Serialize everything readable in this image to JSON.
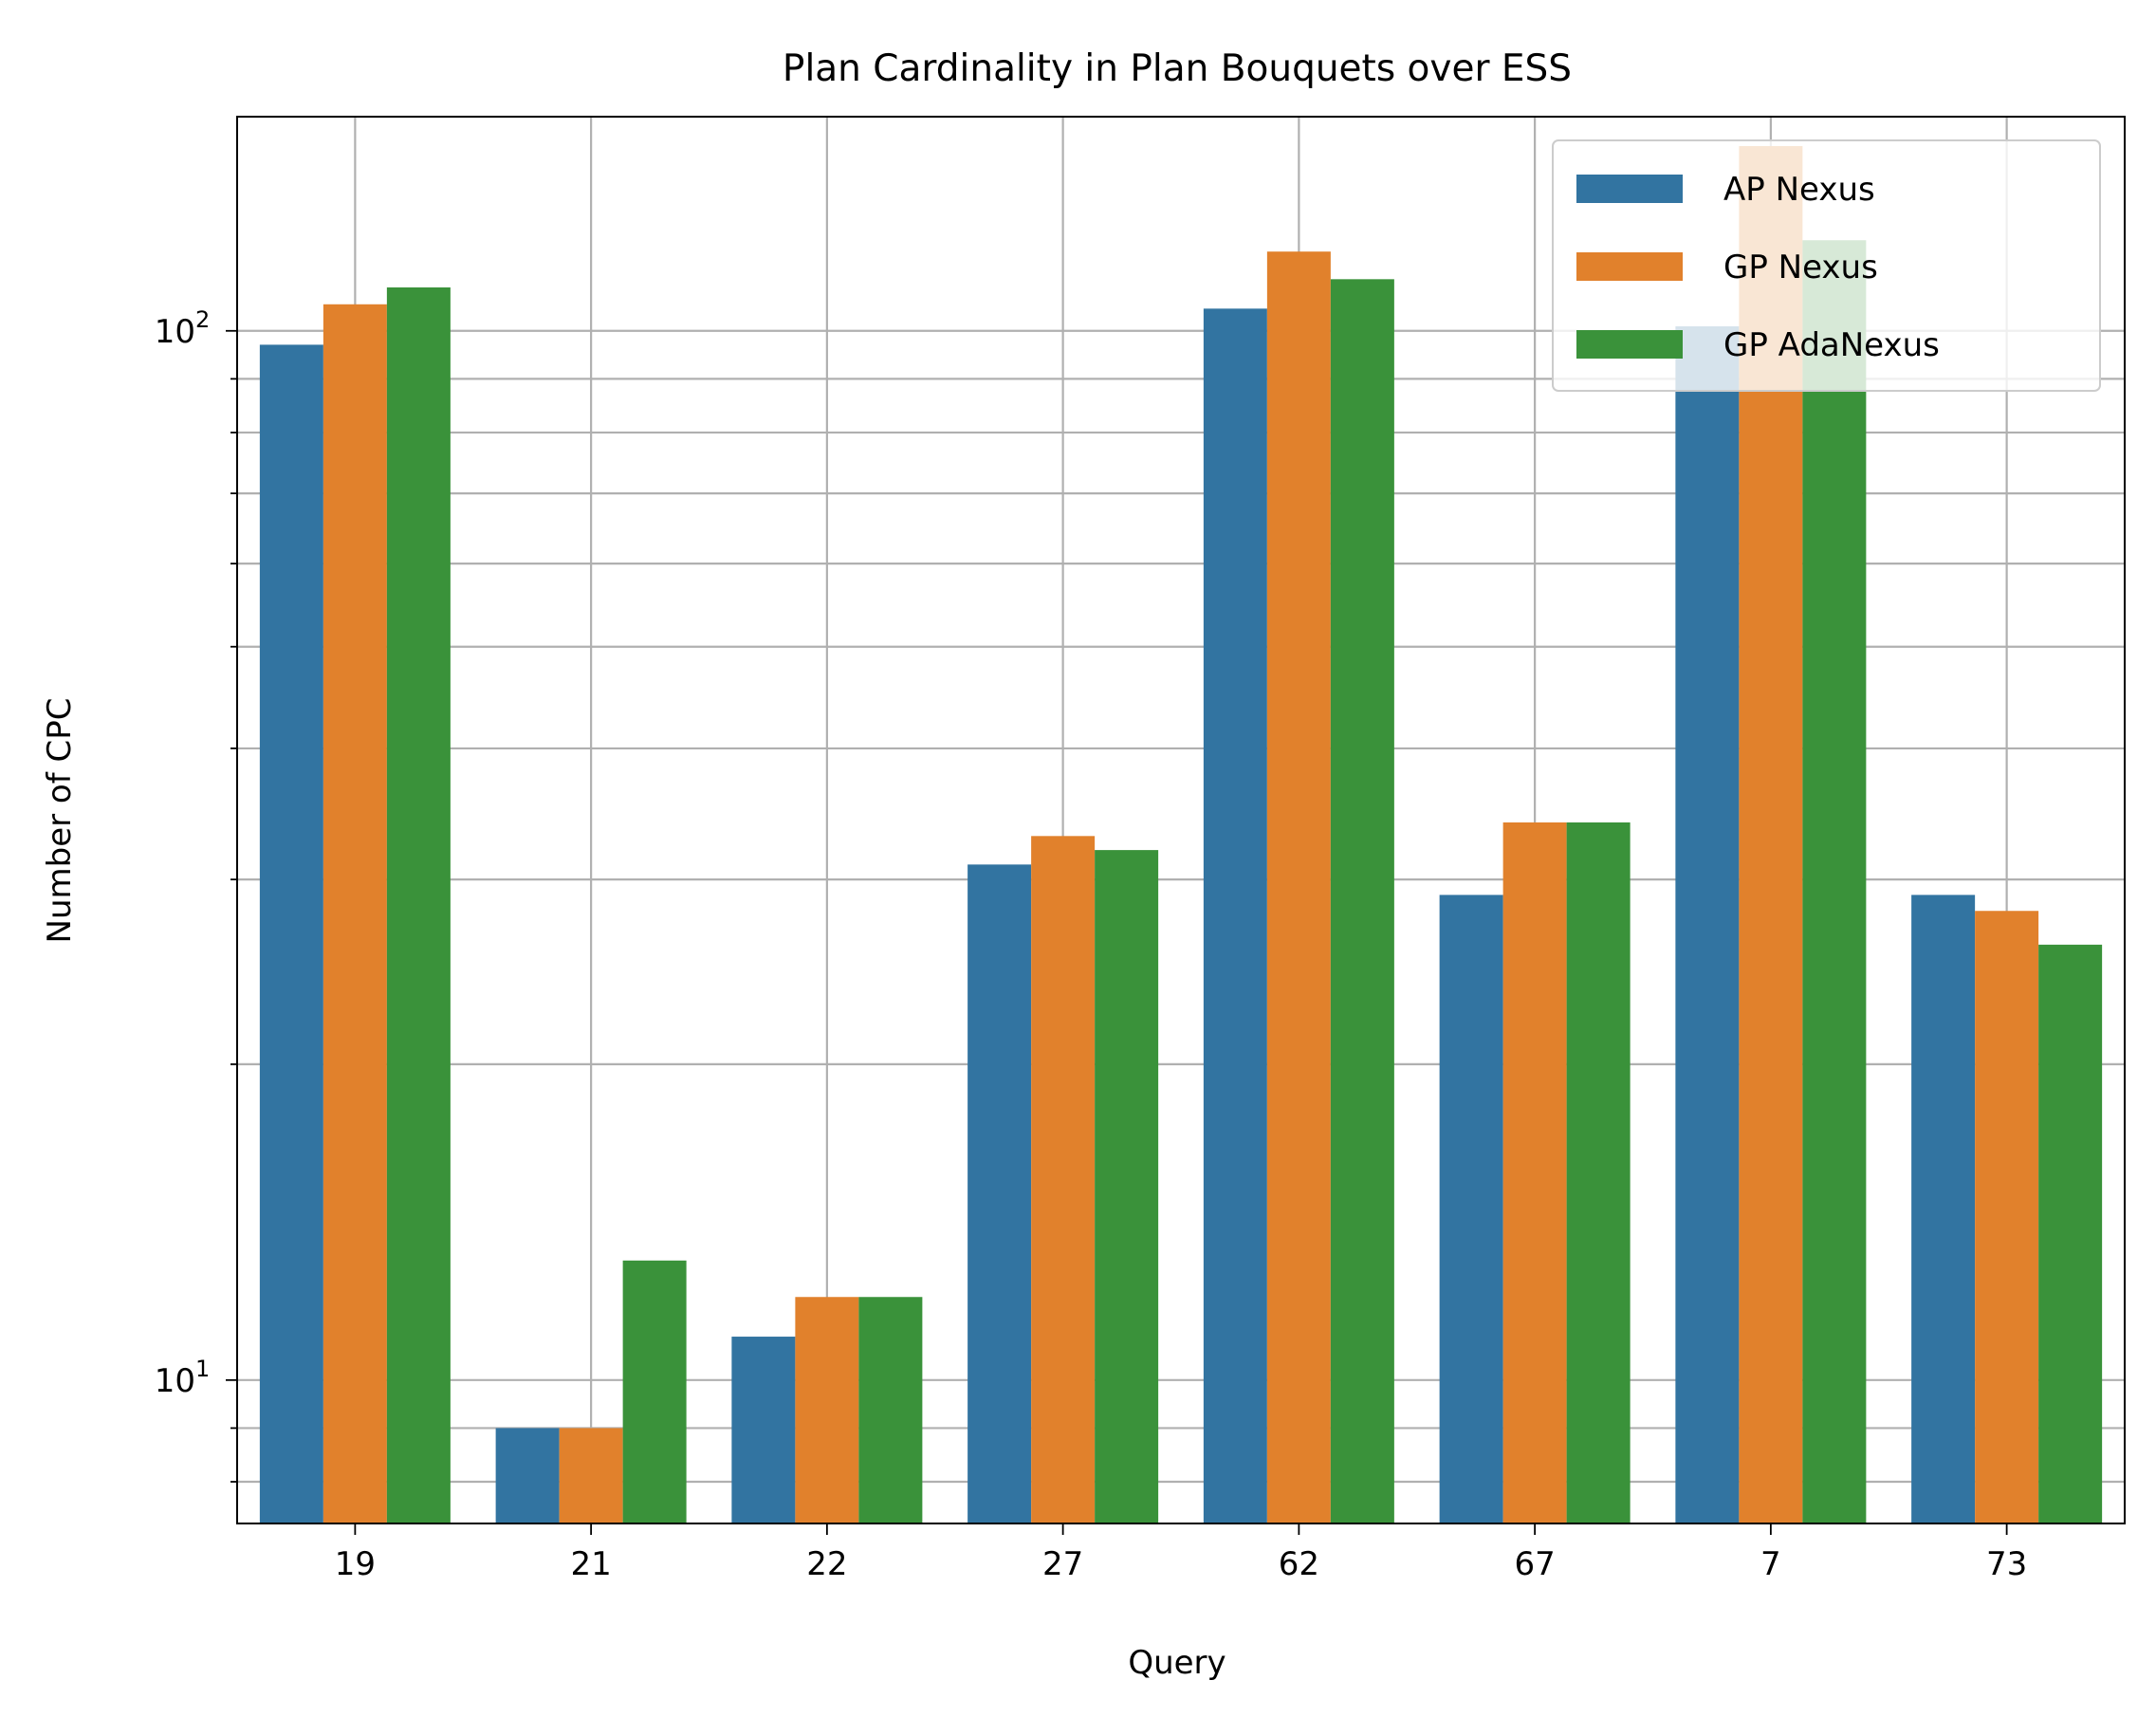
{
  "chart_data": {
    "type": "bar",
    "title": "Plan Cardinality in Plan Bouquets over ESS",
    "xlabel": "Query",
    "ylabel": "Number of CPC",
    "yscale": "log",
    "ylim": [
      7.3,
      160
    ],
    "categories": [
      "19",
      "21",
      "22",
      "27",
      "62",
      "67",
      "7",
      "73"
    ],
    "series": [
      {
        "name": "AP Nexus",
        "color": "#3274a1",
        "values": [
          97,
          9,
          11,
          31,
          105,
          29,
          101,
          29
        ]
      },
      {
        "name": "GP Nexus",
        "color": "#e1812c",
        "values": [
          106,
          9,
          12,
          33,
          119,
          34,
          150,
          28
        ]
      },
      {
        "name": "GP AdaNexus",
        "color": "#3a923a",
        "values": [
          110,
          13,
          12,
          32,
          112,
          34,
          122,
          26
        ]
      }
    ],
    "yticks": [
      {
        "value": 10,
        "base": "10",
        "exp": "1"
      },
      {
        "value": 100,
        "base": "10",
        "exp": "2"
      }
    ],
    "grid": true,
    "legend": "top-right"
  }
}
